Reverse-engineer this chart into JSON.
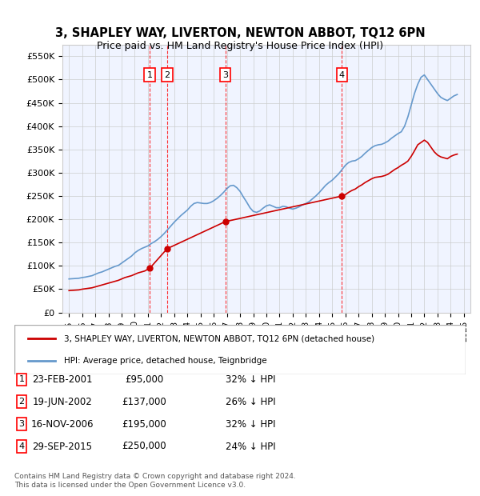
{
  "title": "3, SHAPLEY WAY, LIVERTON, NEWTON ABBOT, TQ12 6PN",
  "subtitle": "Price paid vs. HM Land Registry's House Price Index (HPI)",
  "ylabel": "",
  "xlabel": "",
  "ylim": [
    0,
    575000
  ],
  "yticks": [
    0,
    50000,
    100000,
    150000,
    200000,
    250000,
    300000,
    350000,
    400000,
    450000,
    500000,
    550000
  ],
  "ytick_labels": [
    "£0",
    "£50K",
    "£100K",
    "£150K",
    "£200K",
    "£250K",
    "£300K",
    "£350K",
    "£400K",
    "£450K",
    "£500K",
    "£550K"
  ],
  "xlim_start": 1994.5,
  "xlim_end": 2025.5,
  "background_color": "#f0f4ff",
  "plot_bg_color": "#f0f4ff",
  "grid_color": "#cccccc",
  "title_fontsize": 11,
  "subtitle_fontsize": 9.5,
  "transactions": [
    {
      "num": 1,
      "date": "23-FEB-2001",
      "price": 95000,
      "pct": "32%",
      "x": 2001.14
    },
    {
      "num": 2,
      "date": "19-JUN-2002",
      "price": 137000,
      "pct": "26%",
      "x": 2002.46
    },
    {
      "num": 3,
      "date": "16-NOV-2006",
      "price": 195000,
      "pct": "32%",
      "x": 2006.87
    },
    {
      "num": 4,
      "date": "29-SEP-2015",
      "price": 250000,
      "pct": "24%",
      "x": 2015.74
    }
  ],
  "legend_label_red": "3, SHAPLEY WAY, LIVERTON, NEWTON ABBOT, TQ12 6PN (detached house)",
  "legend_label_blue": "HPI: Average price, detached house, Teignbridge",
  "footer": "Contains HM Land Registry data © Crown copyright and database right 2024.\nThis data is licensed under the Open Government Licence v3.0.",
  "red_color": "#cc0000",
  "blue_color": "#6699cc",
  "hpi_x": [
    1995.0,
    1995.25,
    1995.5,
    1995.75,
    1996.0,
    1996.25,
    1996.5,
    1996.75,
    1997.0,
    1997.25,
    1997.5,
    1997.75,
    1998.0,
    1998.25,
    1998.5,
    1998.75,
    1999.0,
    1999.25,
    1999.5,
    1999.75,
    2000.0,
    2000.25,
    2000.5,
    2000.75,
    2001.0,
    2001.25,
    2001.5,
    2001.75,
    2002.0,
    2002.25,
    2002.5,
    2002.75,
    2003.0,
    2003.25,
    2003.5,
    2003.75,
    2004.0,
    2004.25,
    2004.5,
    2004.75,
    2005.0,
    2005.25,
    2005.5,
    2005.75,
    2006.0,
    2006.25,
    2006.5,
    2006.75,
    2007.0,
    2007.25,
    2007.5,
    2007.75,
    2008.0,
    2008.25,
    2008.5,
    2008.75,
    2009.0,
    2009.25,
    2009.5,
    2009.75,
    2010.0,
    2010.25,
    2010.5,
    2010.75,
    2011.0,
    2011.25,
    2011.5,
    2011.75,
    2012.0,
    2012.25,
    2012.5,
    2012.75,
    2013.0,
    2013.25,
    2013.5,
    2013.75,
    2014.0,
    2014.25,
    2014.5,
    2014.75,
    2015.0,
    2015.25,
    2015.5,
    2015.75,
    2016.0,
    2016.25,
    2016.5,
    2016.75,
    2017.0,
    2017.25,
    2017.5,
    2017.75,
    2018.0,
    2018.25,
    2018.5,
    2018.75,
    2019.0,
    2019.25,
    2019.5,
    2019.75,
    2020.0,
    2020.25,
    2020.5,
    2020.75,
    2021.0,
    2021.25,
    2021.5,
    2021.75,
    2022.0,
    2022.25,
    2022.5,
    2022.75,
    2023.0,
    2023.25,
    2023.5,
    2023.75,
    2024.0,
    2024.25,
    2024.5
  ],
  "hpi_y": [
    72000,
    72500,
    73000,
    73500,
    75000,
    76000,
    77500,
    79000,
    82000,
    85000,
    87000,
    90000,
    93000,
    96000,
    99000,
    101000,
    106000,
    111000,
    116000,
    121000,
    128000,
    133000,
    137000,
    140000,
    143000,
    148000,
    152000,
    157000,
    163000,
    170000,
    178000,
    186000,
    194000,
    201000,
    208000,
    214000,
    220000,
    228000,
    234000,
    236000,
    235000,
    234000,
    234000,
    236000,
    240000,
    245000,
    251000,
    258000,
    266000,
    272000,
    273000,
    268000,
    260000,
    248000,
    237000,
    225000,
    217000,
    215000,
    218000,
    224000,
    229000,
    231000,
    228000,
    225000,
    225000,
    228000,
    227000,
    224000,
    222000,
    224000,
    227000,
    231000,
    234000,
    238000,
    244000,
    250000,
    257000,
    265000,
    273000,
    279000,
    284000,
    291000,
    298000,
    307000,
    316000,
    322000,
    325000,
    326000,
    330000,
    335000,
    342000,
    348000,
    354000,
    358000,
    360000,
    361000,
    364000,
    368000,
    374000,
    379000,
    384000,
    388000,
    400000,
    420000,
    445000,
    470000,
    490000,
    505000,
    510000,
    500000,
    490000,
    480000,
    470000,
    462000,
    458000,
    455000,
    460000,
    465000,
    468000
  ],
  "red_x": [
    1995.0,
    1995.25,
    1995.5,
    1995.75,
    1996.0,
    1996.25,
    1996.5,
    1996.75,
    1997.0,
    1997.25,
    1997.5,
    1997.75,
    1998.0,
    1998.25,
    1998.5,
    1998.75,
    1999.0,
    1999.25,
    1999.5,
    1999.75,
    2000.0,
    2000.25,
    2000.5,
    2000.75,
    2001.14,
    2002.46,
    2006.87,
    2015.74,
    2016.0,
    2016.25,
    2016.5,
    2016.75,
    2017.0,
    2017.25,
    2017.5,
    2017.75,
    2018.0,
    2018.25,
    2018.5,
    2018.75,
    2019.0,
    2019.25,
    2019.5,
    2019.75,
    2020.0,
    2020.25,
    2020.5,
    2020.75,
    2021.0,
    2021.25,
    2021.5,
    2021.75,
    2022.0,
    2022.25,
    2022.5,
    2022.75,
    2023.0,
    2023.25,
    2023.5,
    2023.75,
    2024.0,
    2024.25,
    2024.5
  ],
  "red_y": [
    47000,
    47500,
    48000,
    48500,
    50000,
    51000,
    52000,
    53000,
    55000,
    57000,
    59000,
    61000,
    63000,
    65000,
    67000,
    69000,
    72000,
    75000,
    77000,
    79000,
    82000,
    85000,
    87000,
    89000,
    95000,
    137000,
    195000,
    250000,
    253000,
    258000,
    262000,
    265000,
    270000,
    274000,
    279000,
    283000,
    287000,
    290000,
    291000,
    292000,
    294000,
    297000,
    302000,
    307000,
    311000,
    316000,
    320000,
    325000,
    335000,
    347000,
    360000,
    365000,
    370000,
    365000,
    355000,
    345000,
    338000,
    334000,
    332000,
    330000,
    335000,
    338000,
    340000
  ]
}
